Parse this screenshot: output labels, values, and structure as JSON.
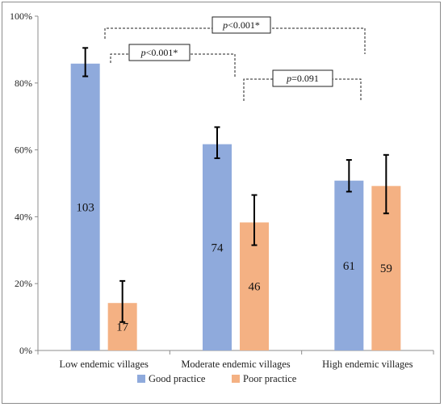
{
  "chart_data": {
    "type": "bar",
    "categories": [
      "Low endemic villages",
      "Moderate endemic villages",
      "High endemic villages"
    ],
    "series": [
      {
        "name": "Good practice",
        "values": [
          85.8,
          61.7,
          50.8
        ],
        "err_low": [
          82.0,
          57.5,
          47.5
        ],
        "err_high": [
          90.5,
          66.8,
          57.0
        ],
        "labels": [
          "103",
          "74",
          "61"
        ],
        "color": "#8faadc"
      },
      {
        "name": "Poor practice",
        "values": [
          14.2,
          38.3,
          49.2
        ],
        "err_low": [
          8.5,
          31.5,
          41.0
        ],
        "err_high": [
          20.8,
          46.5,
          58.5
        ],
        "labels": [
          "17",
          "46",
          "59"
        ],
        "color": "#f4b183"
      }
    ],
    "ylim": [
      0,
      100
    ],
    "yticks": [
      "0%",
      "20%",
      "40%",
      "60%",
      "80%",
      "100%"
    ],
    "ytick_values": [
      0,
      20,
      40,
      60,
      80,
      100
    ],
    "legend_position": "bottom",
    "grid": false,
    "annotations": [
      {
        "italic": "p",
        "rest": "<0.001*"
      },
      {
        "italic": "p",
        "rest": "<0.001*"
      },
      {
        "italic": "p",
        "rest": "=0.091"
      }
    ]
  }
}
